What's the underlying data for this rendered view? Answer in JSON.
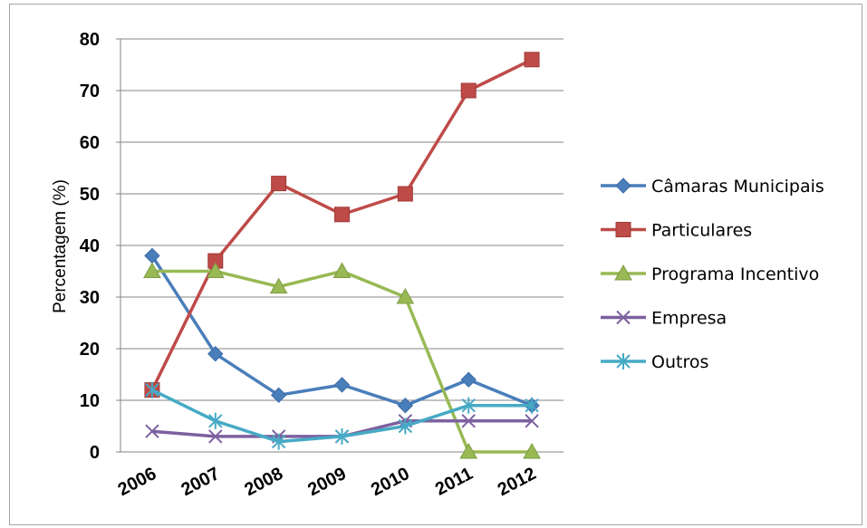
{
  "chart_data": {
    "type": "line",
    "title": "",
    "xlabel": "",
    "ylabel": "Percentagem (%)",
    "ylim": [
      0,
      80
    ],
    "y_ticks": [
      "0",
      "10",
      "20",
      "30",
      "40",
      "50",
      "60",
      "70",
      "80"
    ],
    "grid": true,
    "legend_position": "right",
    "categories": [
      "2006",
      "2007",
      "2008",
      "2009",
      "2010",
      "2011",
      "2012"
    ],
    "series": [
      {
        "name": "Câmaras Municipais",
        "color": "#4a7ebb",
        "marker": "diamond",
        "values": [
          38,
          19,
          11,
          13,
          9,
          14,
          9
        ]
      },
      {
        "name": "Particulares",
        "color": "#be4b48",
        "marker": "square",
        "values": [
          12,
          37,
          52,
          46,
          50,
          70,
          76
        ]
      },
      {
        "name": "Programa Incentivo",
        "color": "#98b954",
        "marker": "triangle",
        "values": [
          35,
          35,
          32,
          35,
          30,
          0,
          0
        ]
      },
      {
        "name": "Empresa",
        "color": "#7d60a0",
        "marker": "x",
        "values": [
          4,
          3,
          3,
          3,
          6,
          6,
          6
        ]
      },
      {
        "name": "Outros",
        "color": "#46aac5",
        "marker": "star",
        "values": [
          12,
          6,
          2,
          3,
          5,
          9,
          9
        ]
      }
    ]
  }
}
